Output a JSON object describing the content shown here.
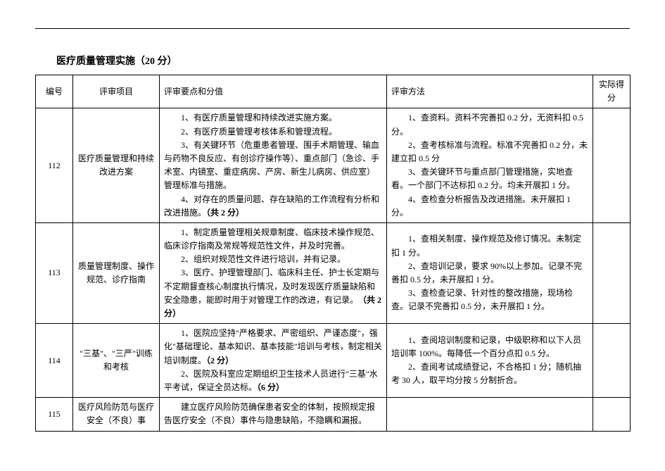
{
  "section_title": "医疗质量管理实施（20 分）",
  "headers": {
    "id": "编号",
    "item": "评审项目",
    "points": "评审要点和分值",
    "method": "评审方法",
    "score": "实际得分"
  },
  "rows": [
    {
      "id": "112",
      "item": "医疗质量管理和持续改进方案",
      "p1": "1、有医疗质量管理和持续改进实施方案。",
      "p2": "2、有医疗质量管理考核体系和管理流程。",
      "p3": "3、有关键环节（危重患者管理、围手术期管理、输血与药物不良反应、有创诊疗操作等）、重点部门（急诊、手术室、内镜室、重症病房、产房、新生儿病房、供应室）管理标准与措施。",
      "p4a": "4、对存在的质量问题、存在缺陷的工作流程有分析和改进措施。",
      "p4b": "（共 2 分）",
      "m1": "1、查资料。资料不完善扣 0.2 分，无资料扣 0.5 分。",
      "m2": "2、查考核标准与流程。标准不完善扣 0.2 分，未建立扣 0.5 分",
      "m3": "3、查关键环节与重点部门管理措施，实地查看。一个部门不达标扣 0.2 分。均未开展扣 1 分。",
      "m4": "4、查检查分析报告及改进措施。未开展扣 1 分。"
    },
    {
      "id": "113",
      "item": "质量管理制度、操作规范、诊疗指南",
      "p1": "1、制定质量管理相关规章制度、临床技术操作规范、临床诊疗指南及常规等规范性文件，并及时完善。",
      "p2": "2、组织对规范性文件进行培训，并有记录。",
      "p3a": "3、医疗、护理管理部门、临床科主任、护士长定期与不定期督查核心制度执行情况，及时发现医疗质量缺陷和安全隐患，能即时用于对管理工作的改进，有记录。",
      "p3b": "（共 2 分）",
      "m1": "1、查相关制度、操作规范及修订情况。未制定扣 1 分。",
      "m2": "2、查培训记录，要求 90%以上参加。记录不完善扣 0.5 分，未开展扣 1 分。",
      "m3": "3、查检查记录、针对性的整改措施，现场检查。记录不完善扣 0.5 分，未开展扣 1 分。"
    },
    {
      "id": "114",
      "item": "\"三基\"、\"三严\"训练和考核",
      "p1a": "1、医院应坚持\"严格要求、严密组织、严谨态度\"，强化\"基础理论、基本知识、基本技能\"培训与考核，制定相关培训制度。",
      "p1b": "（2 分）",
      "p2a": "2、医院及科室应定期组织卫生技术人员进行\"三基\"水平考试，保证全员达标。",
      "p2b": "（6 分）",
      "m1": "1、查阅培训制度和记录，中级职称和以下人员培训率 100%。每降低一个百分点扣 0.5 分。",
      "m2": "2、查阅考试成绩登记，不合格扣 1 分；随机抽考 30 人，取平均分按 5 分制折合。"
    },
    {
      "id": "115",
      "item": "医疗风险防范与医疗安全（不良）事",
      "p1": "建立医疗风险防范确保患者安全的体制，按照规定报告医疗安全（不良）事件与隐患缺陷，不隐瞒和漏报。",
      "m1": ""
    }
  ]
}
